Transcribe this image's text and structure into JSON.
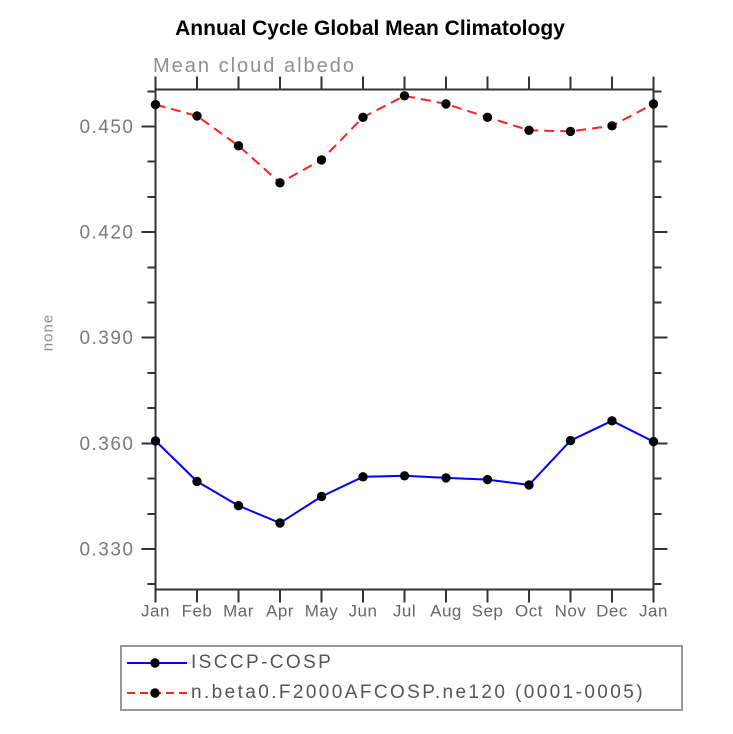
{
  "title": "Annual Cycle Global Mean Climatology",
  "subtitle": "Mean cloud albedo",
  "y_axis_label": "none",
  "chart_data": {
    "type": "line",
    "title": "Annual Cycle Global Mean Climatology",
    "subtitle": "Mean cloud albedo",
    "xlabel": "",
    "ylabel": "none",
    "categories": [
      "Jan",
      "Feb",
      "Mar",
      "Apr",
      "May",
      "Jun",
      "Jul",
      "Aug",
      "Sep",
      "Oct",
      "Nov",
      "Dec",
      "Jan"
    ],
    "series": [
      {
        "name": "ISCCP-COSP",
        "line_style": "solid",
        "color": "#0000ff",
        "marker": "circle",
        "marker_color": "#000000",
        "values": [
          0.3607,
          0.3492,
          0.3423,
          0.3374,
          0.3449,
          0.3505,
          0.3508,
          0.3502,
          0.3497,
          0.3482,
          0.3608,
          0.3664,
          0.3605
        ]
      },
      {
        "name": "n.beta0.F2000AFCOSP.ne120 (0001-0005)",
        "line_style": "dashed",
        "color": "#ff2020",
        "marker": "circle",
        "marker_color": "#000000",
        "values": [
          0.4562,
          0.453,
          0.4445,
          0.434,
          0.4405,
          0.4526,
          0.4587,
          0.4564,
          0.4526,
          0.4489,
          0.4486,
          0.4502,
          0.4564
        ]
      }
    ],
    "ylim": [
      0.3185,
      0.4605
    ],
    "yticks_major": [
      0.33,
      0.36,
      0.39,
      0.42,
      0.45
    ],
    "ytick_minor_step": 0.01,
    "ytick_label_decimals": 3,
    "grid": false,
    "legend_position": "bottom-left"
  },
  "colors": {
    "axis": "#333333",
    "y_tick_label": "#7a7a7a",
    "month_label": "#666666",
    "subtitle": "#8f8f8f",
    "title": "#000000",
    "legend_border": "#999999",
    "legend_text": "#555555",
    "background": "#ffffff"
  },
  "legend": {
    "items": [
      {
        "label": "ISCCP-COSP"
      },
      {
        "label": "n.beta0.F2000AFCOSP.ne120 (0001-0005)"
      }
    ]
  }
}
